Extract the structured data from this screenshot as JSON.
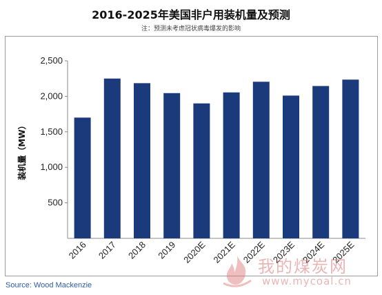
{
  "chart_data": {
    "type": "bar",
    "title": "2016-2025年美国非户用装机量及预测",
    "subtitle": "注：预测未考虑冠状病毒爆发的影响",
    "ylabel": "装机量（MW）",
    "xlabel": "",
    "categories": [
      "2016",
      "2017",
      "2018",
      "2019",
      "2020E",
      "2021E",
      "2022E",
      "2023E",
      "2024E",
      "2025E"
    ],
    "values": [
      1700,
      2250,
      2185,
      2045,
      1900,
      2055,
      2205,
      2010,
      2145,
      2235
    ],
    "ylim": [
      0,
      2500
    ],
    "yticks": [
      500,
      1000,
      1500,
      2000,
      2500
    ],
    "ytick_labels": [
      "500",
      "1,000",
      "1,500",
      "2,000",
      "2,500"
    ],
    "bar_color": "#1a3a7c",
    "grid": false,
    "legend": "none"
  },
  "source": "Source: Wood Mackenzie",
  "watermark": {
    "text": "我的煤炭网",
    "url": "www.mycoal.cn",
    "icon": "flame-logo-icon"
  }
}
